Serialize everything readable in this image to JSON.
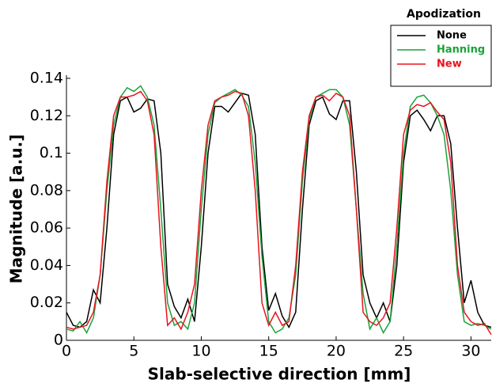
{
  "chart_data": {
    "type": "line",
    "xlabel": "Slab-selective direction [mm]",
    "ylabel": "Magnitude [a.u.]",
    "legend_title": "Apodization",
    "legend": "upper right",
    "x": [
      0,
      0.5,
      1,
      1.5,
      2,
      2.5,
      3,
      3.5,
      4,
      4.5,
      5,
      5.5,
      6,
      6.5,
      7,
      7.5,
      8,
      8.5,
      9,
      9.5,
      10,
      10.5,
      11,
      11.5,
      12,
      12.5,
      13,
      13.5,
      14,
      14.5,
      15,
      15.5,
      16,
      16.5,
      17,
      17.5,
      18,
      18.5,
      19,
      19.5,
      20,
      20.5,
      21,
      21.5,
      22,
      22.5,
      23,
      23.5,
      24,
      24.5,
      25,
      25.5,
      26,
      26.5,
      27,
      27.5,
      28,
      28.5,
      29,
      29.5,
      30,
      30.5,
      31,
      31.5
    ],
    "series": [
      {
        "name": "None",
        "color": "#000000",
        "values": [
          0.015,
          0.008,
          0.007,
          0.01,
          0.027,
          0.02,
          0.06,
          0.11,
          0.128,
          0.13,
          0.122,
          0.124,
          0.129,
          0.128,
          0.1,
          0.03,
          0.018,
          0.012,
          0.022,
          0.01,
          0.05,
          0.1,
          0.125,
          0.125,
          0.122,
          0.127,
          0.132,
          0.131,
          0.11,
          0.05,
          0.016,
          0.025,
          0.013,
          0.007,
          0.015,
          0.07,
          0.115,
          0.128,
          0.13,
          0.121,
          0.118,
          0.128,
          0.128,
          0.09,
          0.035,
          0.02,
          0.012,
          0.02,
          0.01,
          0.04,
          0.095,
          0.12,
          0.123,
          0.118,
          0.112,
          0.12,
          0.12,
          0.105,
          0.06,
          0.02,
          0.032,
          0.015,
          0.008,
          0.007
        ]
      },
      {
        "name": "Hanning",
        "color": "#1aa33a",
        "values": [
          0.006,
          0.005,
          0.01,
          0.004,
          0.012,
          0.035,
          0.08,
          0.115,
          0.13,
          0.135,
          0.133,
          0.136,
          0.13,
          0.115,
          0.07,
          0.02,
          0.008,
          0.01,
          0.006,
          0.02,
          0.07,
          0.11,
          0.127,
          0.13,
          0.132,
          0.134,
          0.131,
          0.125,
          0.095,
          0.045,
          0.01,
          0.004,
          0.006,
          0.012,
          0.035,
          0.085,
          0.118,
          0.13,
          0.132,
          0.134,
          0.134,
          0.13,
          0.115,
          0.07,
          0.025,
          0.006,
          0.012,
          0.004,
          0.01,
          0.05,
          0.1,
          0.125,
          0.13,
          0.131,
          0.127,
          0.12,
          0.11,
          0.08,
          0.035,
          0.01,
          0.008,
          0.009,
          0.008,
          0.006
        ]
      },
      {
        "name": "New",
        "color": "#e8141e",
        "values": [
          0.007,
          0.006,
          0.007,
          0.008,
          0.015,
          0.035,
          0.085,
          0.12,
          0.13,
          0.13,
          0.131,
          0.133,
          0.128,
          0.11,
          0.05,
          0.008,
          0.012,
          0.006,
          0.015,
          0.03,
          0.08,
          0.115,
          0.128,
          0.13,
          0.131,
          0.133,
          0.132,
          0.12,
          0.08,
          0.02,
          0.008,
          0.015,
          0.008,
          0.01,
          0.04,
          0.09,
          0.12,
          0.13,
          0.131,
          0.128,
          0.132,
          0.13,
          0.12,
          0.07,
          0.015,
          0.01,
          0.008,
          0.012,
          0.02,
          0.06,
          0.11,
          0.123,
          0.126,
          0.125,
          0.127,
          0.122,
          0.118,
          0.095,
          0.04,
          0.015,
          0.01,
          0.008,
          0.009,
          0.003
        ]
      }
    ],
    "xlim": [
      0,
      31.5
    ],
    "xticks": [
      0,
      5,
      10,
      15,
      20,
      25,
      30
    ],
    "ylim": [
      0,
      0.14
    ],
    "yticks": [
      0,
      0.02,
      0.04,
      0.06,
      0.08,
      0.1,
      0.12,
      0.14
    ],
    "grid": false
  }
}
